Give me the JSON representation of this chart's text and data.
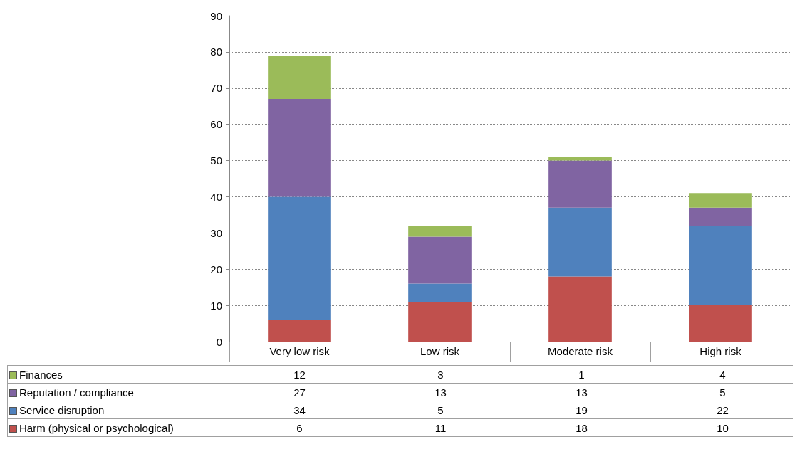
{
  "chart_data": {
    "type": "bar",
    "stacked": true,
    "categories": [
      "Very low risk",
      "Low risk",
      "Moderate risk",
      "High risk"
    ],
    "series": [
      {
        "name": "Harm (physical or psychological)",
        "color": "#c0504d",
        "values": [
          6,
          11,
          18,
          10
        ]
      },
      {
        "name": "Service disruption",
        "color": "#4f81bd",
        "values": [
          34,
          5,
          19,
          22
        ]
      },
      {
        "name": "Reputation / compliance",
        "color": "#8064a2",
        "values": [
          27,
          13,
          13,
          5
        ]
      },
      {
        "name": "Finances",
        "color": "#9bbb59",
        "values": [
          12,
          3,
          1,
          4
        ]
      }
    ],
    "ylim": [
      0,
      90
    ],
    "yticks": [
      0,
      10,
      20,
      30,
      40,
      50,
      60,
      70,
      80,
      90
    ],
    "grid": "y",
    "legend": "bottom",
    "data_labels": true
  }
}
